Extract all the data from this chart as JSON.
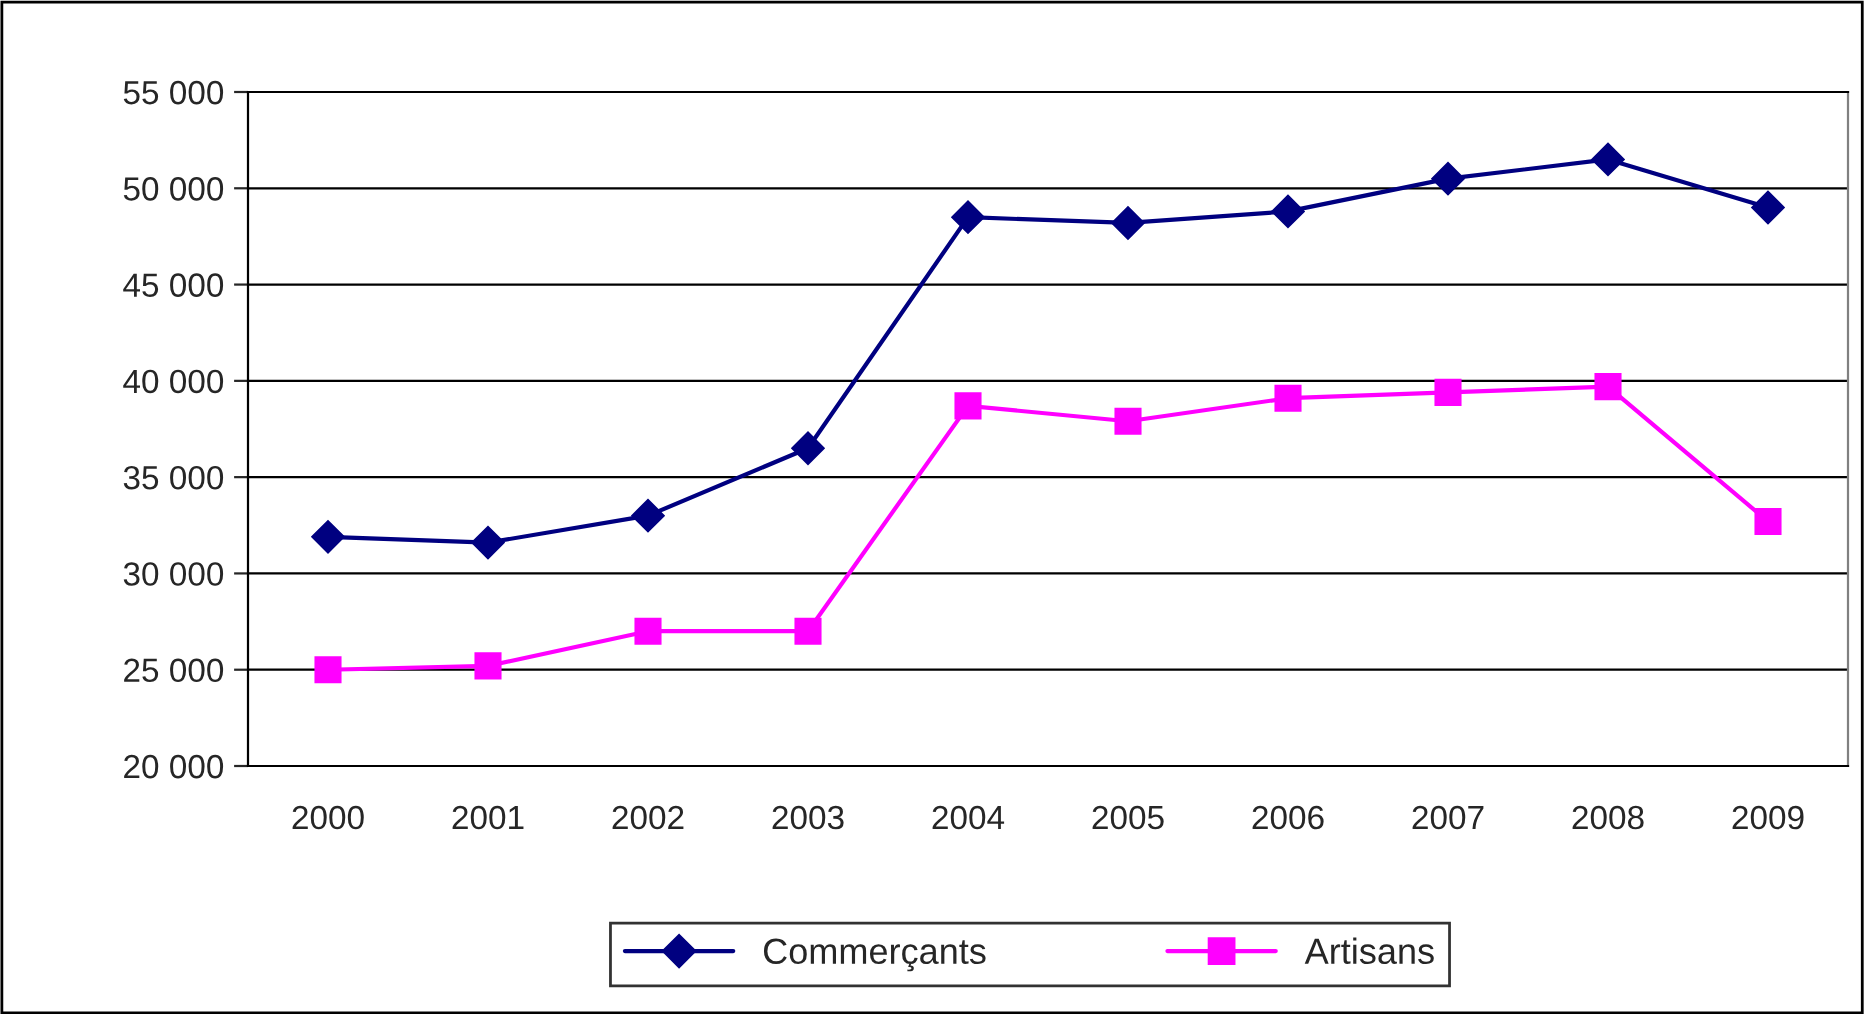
{
  "chart_data": {
    "type": "line",
    "categories": [
      "2000",
      "2001",
      "2002",
      "2003",
      "2004",
      "2005",
      "2006",
      "2007",
      "2008",
      "2009"
    ],
    "series": [
      {
        "name": "Commerçants",
        "color": "#000080",
        "marker": "diamond",
        "values": [
          31900,
          31600,
          33000,
          36500,
          48500,
          48200,
          48800,
          50500,
          51500,
          49000
        ]
      },
      {
        "name": "Artisans",
        "color": "#ff00ff",
        "marker": "square",
        "values": [
          25000,
          25200,
          27000,
          27000,
          38700,
          37900,
          39100,
          39400,
          39700,
          32700
        ]
      }
    ],
    "ylim": [
      20000,
      55000
    ],
    "yticks": [
      {
        "value": 20000,
        "label": "20 000"
      },
      {
        "value": 25000,
        "label": "25 000"
      },
      {
        "value": 30000,
        "label": "30 000"
      },
      {
        "value": 35000,
        "label": "35 000"
      },
      {
        "value": 40000,
        "label": "40 000"
      },
      {
        "value": 45000,
        "label": "45 000"
      },
      {
        "value": 50000,
        "label": "50 000"
      },
      {
        "value": 55000,
        "label": "55 000"
      }
    ],
    "grid": "y",
    "legend": "bottom",
    "line_style": "solid"
  }
}
